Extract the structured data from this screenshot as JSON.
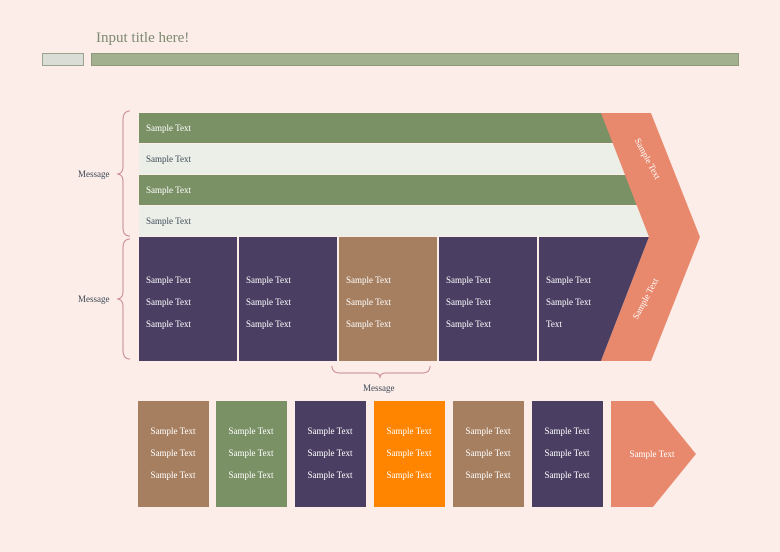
{
  "title": "Input title here!",
  "colors": {
    "background": "#fcede9",
    "green": "#7a9065",
    "light": "#ecefe8",
    "purple": "#4a3f62",
    "brown": "#a67f60",
    "salmon": "#e8896d",
    "orange": "#ff8400"
  },
  "top_rows": [
    "Sample Text",
    "Sample Text",
    "Sample Text",
    "Sample Text"
  ],
  "mid_columns": [
    [
      "Sample Text",
      "Sample Text",
      "Sample Text"
    ],
    [
      "Sample Text",
      "Sample Text",
      "Sample Text"
    ],
    [
      "Sample Text",
      "Sample Text",
      "Sample Text"
    ],
    [
      "Sample Text",
      "Sample Text",
      "Sample Text"
    ],
    [
      "Sample Text",
      "Sample Text",
      "Text"
    ]
  ],
  "chevron_top_label": "Sample Text",
  "chevron_bottom_label": "Sample Text",
  "brace_labels": [
    "Message",
    "Message",
    "Message"
  ],
  "bottom_cards": [
    [
      "Sample Text",
      "Sample Text",
      "Sample Text"
    ],
    [
      "Sample Text",
      "Sample Text",
      "Sample Text"
    ],
    [
      "Sample Text",
      "Sample Text",
      "Sample Text"
    ],
    [
      "Sample Text",
      "Sample Text",
      "Sample Text"
    ],
    [
      "Sample Text",
      "Sample Text",
      "Sample Text"
    ],
    [
      "Sample Text",
      "Sample Text",
      "Sample Text"
    ]
  ],
  "bottom_arrow_label": "Sample Text"
}
